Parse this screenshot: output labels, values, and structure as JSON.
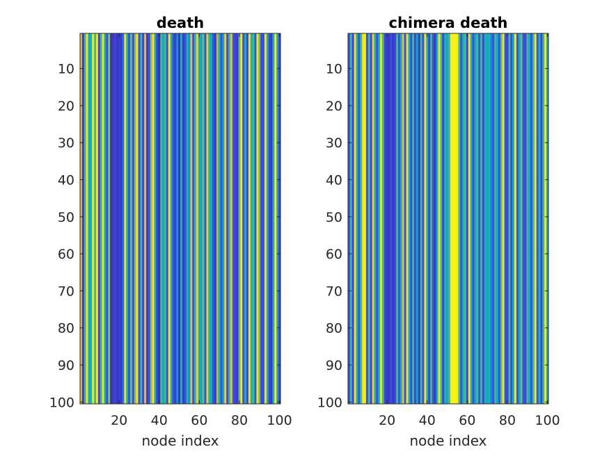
{
  "chart_data": [
    {
      "type": "heatmap",
      "title": "death",
      "xlabel": "node index",
      "ylabel": "",
      "xlim": [
        0.5,
        100.5
      ],
      "ylim": [
        0.5,
        100.5
      ],
      "x_ticks": [
        20,
        40,
        60,
        80,
        100
      ],
      "y_ticks": [
        10,
        20,
        30,
        40,
        50,
        60,
        70,
        80,
        90,
        100
      ],
      "colormap": "parula",
      "columns": "node index 1..100, value per node constant over all rows",
      "values": [
        0.85,
        0.1,
        0.6,
        0.95,
        0.5,
        0.55,
        0.97,
        0.6,
        0.95,
        0.15,
        0.6,
        0.95,
        0.5,
        0.2,
        0.7,
        0.05,
        0.1,
        0.15,
        0.08,
        0.12,
        0.1,
        0.3,
        0.95,
        0.55,
        0.2,
        0.65,
        0.2,
        0.7,
        0.95,
        0.2,
        0.6,
        0.15,
        0.85,
        0.1,
        0.2,
        0.7,
        0.95,
        0.5,
        0.15,
        0.05,
        0.6,
        0.5,
        0.6,
        0.2,
        0.95,
        0.55,
        0.2,
        0.1,
        0.4,
        0.08,
        0.55,
        0.1,
        0.2,
        0.55,
        0.4,
        0.85,
        0.2,
        0.6,
        0.9,
        0.5,
        0.5,
        0.65,
        0.2,
        0.9,
        0.55,
        0.5,
        0.2,
        0.1,
        0.75,
        0.55,
        0.2,
        0.5,
        0.9,
        0.15,
        0.6,
        0.85,
        0.2,
        0.15,
        0.1,
        0.65,
        0.95,
        0.2,
        0.55,
        0.15,
        0.95,
        0.55,
        0.6,
        0.2,
        0.95,
        0.65,
        0.15,
        0.2,
        0.95,
        0.55,
        0.15,
        0.1,
        0.55,
        0.97,
        0.5,
        0.15
      ]
    },
    {
      "type": "heatmap",
      "title": "chimera death",
      "xlabel": "node index",
      "ylabel": "",
      "xlim": [
        0.5,
        100.5
      ],
      "ylim": [
        0.5,
        100.5
      ],
      "x_ticks": [
        20,
        40,
        60,
        80,
        100
      ],
      "y_ticks": [
        10,
        20,
        30,
        40,
        50,
        60,
        70,
        80,
        90,
        100
      ],
      "colormap": "parula",
      "columns": "node index 1..100, value per node constant over all rows",
      "values": [
        0.2,
        0.6,
        0.15,
        0.95,
        0.55,
        0.2,
        0.6,
        0.95,
        0.97,
        0.2,
        0.6,
        0.15,
        0.9,
        0.55,
        0.2,
        0.55,
        0.95,
        0.6,
        0.15,
        0.1,
        0.1,
        0.2,
        0.1,
        0.15,
        0.6,
        0.2,
        0.55,
        0.85,
        0.2,
        0.95,
        0.55,
        0.2,
        0.6,
        0.15,
        0.5,
        0.1,
        0.6,
        0.2,
        0.95,
        0.55,
        0.15,
        0.6,
        0.2,
        0.1,
        0.55,
        0.95,
        0.6,
        0.15,
        0.55,
        0.5,
        0.6,
        0.97,
        0.99,
        0.98,
        0.97,
        0.6,
        0.2,
        0.55,
        0.6,
        0.15,
        0.95,
        0.55,
        0.2,
        0.5,
        0.6,
        0.2,
        0.6,
        0.15,
        0.55,
        0.5,
        0.55,
        0.35,
        0.2,
        0.6,
        0.5,
        0.2,
        0.65,
        0.95,
        0.2,
        0.15,
        0.6,
        0.2,
        0.55,
        0.95,
        0.2,
        0.5,
        0.65,
        0.2,
        0.15,
        0.6,
        0.5,
        0.2,
        0.6,
        0.95,
        0.2,
        0.55,
        0.15,
        0.6,
        0.97,
        0.5
      ]
    }
  ]
}
